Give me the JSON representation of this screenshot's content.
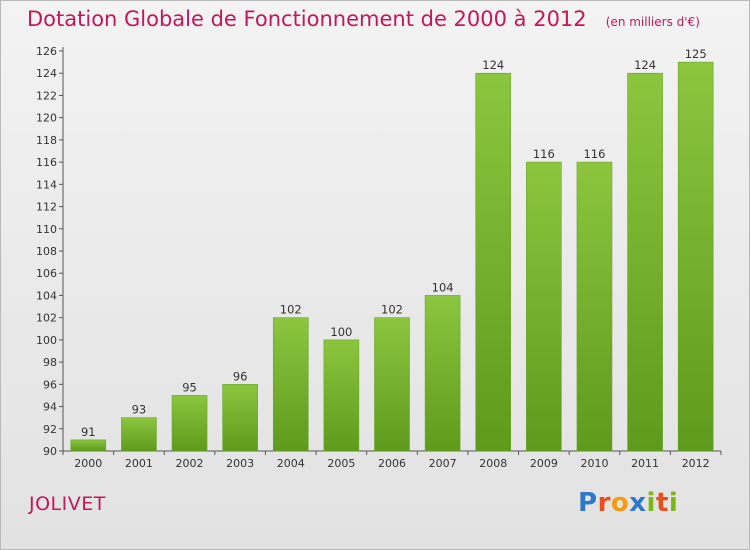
{
  "title": "Dotation Globale de Fonctionnement de 2000 à 2012",
  "unit": "(en milliers d'€)",
  "place": "JOLIVET",
  "logo": {
    "text": "Proxiti",
    "letters": [
      {
        "ch": "P",
        "color": "#2f78c8"
      },
      {
        "ch": "r",
        "color": "#e94e1b"
      },
      {
        "ch": "o",
        "color": "#f39c12"
      },
      {
        "ch": "x",
        "color": "#2f78c8"
      },
      {
        "ch": "i",
        "color": "#7cb518"
      },
      {
        "ch": "t",
        "color": "#e94e1b"
      },
      {
        "ch": "i",
        "color": "#7cb518"
      }
    ]
  },
  "chart_data": {
    "type": "bar",
    "title": "Dotation Globale de Fonctionnement de 2000 à 2012",
    "ylabel": "",
    "xlabel": "",
    "categories": [
      "2000",
      "2001",
      "2002",
      "2003",
      "2004",
      "2005",
      "2006",
      "2007",
      "2008",
      "2009",
      "2010",
      "2011",
      "2012"
    ],
    "values": [
      91,
      93,
      95,
      96,
      102,
      100,
      102,
      104,
      124,
      116,
      116,
      124,
      125
    ],
    "ylim": [
      90,
      126
    ],
    "yticks": [
      90,
      92,
      94,
      96,
      98,
      100,
      102,
      104,
      106,
      108,
      110,
      112,
      114,
      116,
      118,
      120,
      122,
      124,
      126
    ],
    "bar_color": "#8cc63f",
    "bar_color_dark": "#5e9a1c",
    "grid": false
  }
}
